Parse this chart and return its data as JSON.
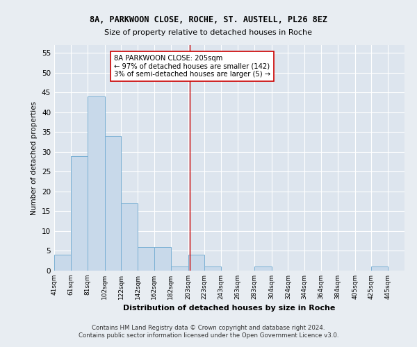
{
  "title1": "8A, PARKWOON CLOSE, ROCHE, ST. AUSTELL, PL26 8EZ",
  "title2": "Size of property relative to detached houses in Roche",
  "xlabel": "Distribution of detached houses by size in Roche",
  "ylabel": "Number of detached properties",
  "bin_labels": [
    "41sqm",
    "61sqm",
    "81sqm",
    "102sqm",
    "122sqm",
    "142sqm",
    "162sqm",
    "182sqm",
    "203sqm",
    "223sqm",
    "243sqm",
    "263sqm",
    "283sqm",
    "304sqm",
    "324sqm",
    "344sqm",
    "364sqm",
    "384sqm",
    "405sqm",
    "425sqm",
    "445sqm"
  ],
  "bin_edges": [
    41,
    61,
    81,
    102,
    122,
    142,
    162,
    182,
    203,
    223,
    243,
    263,
    283,
    304,
    324,
    344,
    364,
    384,
    405,
    425,
    445
  ],
  "bar_heights": [
    4,
    29,
    44,
    34,
    17,
    6,
    6,
    1,
    4,
    1,
    0,
    0,
    1,
    0,
    0,
    0,
    0,
    0,
    0,
    1,
    0
  ],
  "bar_color": "#c8d9ea",
  "bar_edge_color": "#7ab0d4",
  "reference_line_x": 205,
  "reference_line_color": "#cc0000",
  "annotation_text": "8A PARKWOON CLOSE: 205sqm\n← 97% of detached houses are smaller (142)\n3% of semi-detached houses are larger (5) →",
  "annotation_box_color": "#cc0000",
  "ylim": [
    0,
    57
  ],
  "yticks": [
    0,
    5,
    10,
    15,
    20,
    25,
    30,
    35,
    40,
    45,
    50,
    55
  ],
  "footer": "Contains HM Land Registry data © Crown copyright and database right 2024.\nContains public sector information licensed under the Open Government Licence v3.0.",
  "bg_color": "#e8edf2",
  "plot_bg_color": "#dde5ee"
}
